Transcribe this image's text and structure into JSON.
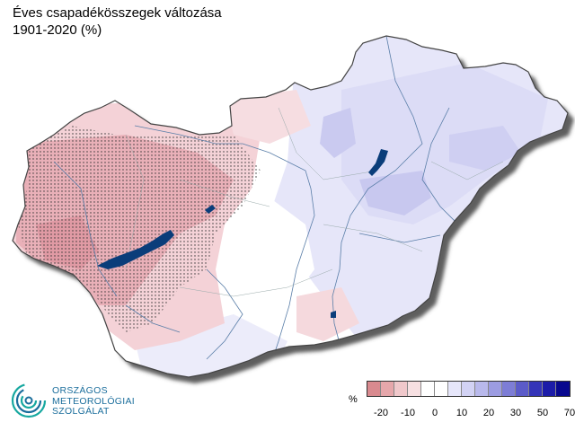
{
  "title": "Éves csapadékösszegek változása",
  "subtitle": "1901-2020 (%)",
  "legend": {
    "unit": "%",
    "colors": [
      "#d98a8f",
      "#e6a7ab",
      "#f0c8cb",
      "#f7e0e2",
      "#ffffff",
      "#ffffff",
      "#e6e6fa",
      "#d2d2f4",
      "#b9b9ec",
      "#9c9ce2",
      "#7d7dd6",
      "#5b5bc9",
      "#3434b8",
      "#1c1ca8",
      "#08088e"
    ],
    "ticks": [
      "-20",
      "-10",
      "0",
      "10",
      "20",
      "30",
      "50",
      "70"
    ]
  },
  "logo": {
    "line1": "ORSZÁGOS",
    "line2": "METEOROLÓGIAI",
    "line3": "SZOLGÁLAT"
  },
  "colors": {
    "west_dry": "#f3cfd4",
    "west_drier": "#e9aeb6",
    "east_wet": "#e4e4f8",
    "east_wetter": "#c9c9ef",
    "lakes": "#0a3d7a",
    "rivers": "#4a6f9a"
  }
}
